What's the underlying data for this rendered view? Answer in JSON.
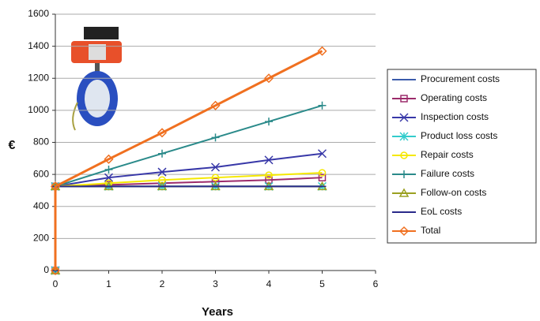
{
  "chart_data": {
    "type": "line",
    "y_label": "€",
    "x_label": "Years",
    "x": [
      0,
      0,
      1,
      2,
      3,
      4,
      5
    ],
    "xlim": [
      0,
      6
    ],
    "xticks": [
      0,
      1,
      2,
      3,
      4,
      5,
      6
    ],
    "ylim": [
      0,
      1600
    ],
    "yticks": [
      0,
      200,
      400,
      600,
      800,
      1000,
      1200,
      1400,
      1600
    ],
    "grid": true,
    "legend": "right",
    "series": [
      {
        "name": "Procurement costs",
        "color": "#3b5bab",
        "marker": "dash",
        "values": [
          0,
          525,
          525,
          525,
          525,
          525,
          525
        ]
      },
      {
        "name": "Operating costs",
        "color": "#9c2b6b",
        "marker": "square",
        "values": [
          0,
          525,
          535,
          545,
          555,
          565,
          580
        ]
      },
      {
        "name": "Inspection costs",
        "color": "#3838a8",
        "marker": "x",
        "values": [
          0,
          525,
          580,
          615,
          645,
          690,
          730
        ]
      },
      {
        "name": "Product loss costs",
        "color": "#33cccc",
        "marker": "star",
        "values": [
          0,
          525,
          525,
          525,
          525,
          525,
          525
        ]
      },
      {
        "name": "Repair costs",
        "color": "#f5e800",
        "marker": "circle",
        "values": [
          0,
          525,
          545,
          565,
          580,
          595,
          610
        ]
      },
      {
        "name": "Failure costs",
        "color": "#2a8a8a",
        "marker": "plus",
        "values": [
          0,
          525,
          630,
          730,
          830,
          930,
          1030
        ]
      },
      {
        "name": "Follow-on costs",
        "color": "#9aa020",
        "marker": "triangle",
        "values": [
          0,
          525,
          525,
          525,
          525,
          525,
          525
        ]
      },
      {
        "name": "EoL costs",
        "color": "#2a2a8a",
        "marker": "dash",
        "values": [
          0,
          525,
          525,
          525,
          525,
          525,
          525
        ]
      },
      {
        "name": "Total",
        "color": "#f07020",
        "marker": "diamond",
        "values": [
          0,
          525,
          695,
          860,
          1030,
          1200,
          1370
        ]
      }
    ]
  }
}
